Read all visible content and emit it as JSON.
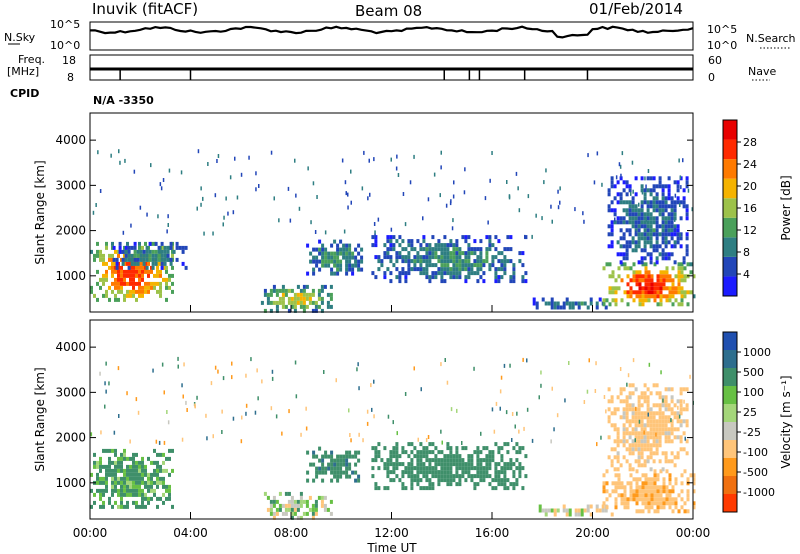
{
  "header": {
    "station": "Inuvik (fitACF)",
    "beam": "Beam 08",
    "date": "01/Feb/2014"
  },
  "status_panel": {
    "left_labels": [
      "N.Sky",
      "Freq.",
      "[MHz]",
      "CPID"
    ],
    "right_labels": [
      "N.Search",
      "Nave"
    ],
    "noise_ticks_left": [
      "10^5",
      "10^0"
    ],
    "noise_ticks_right": [
      "10^5",
      "10^0"
    ],
    "freq_ticks": [
      "18",
      "8"
    ],
    "nave_ticks": [
      "60",
      "0"
    ],
    "cpid_text": "N/A  -3350"
  },
  "colors": {
    "power": [
      "#1c1cff",
      "#2246b8",
      "#2e7e82",
      "#4aa05a",
      "#9dc24a",
      "#f5b300",
      "#ff7a00",
      "#ff2a00",
      "#e80000"
    ],
    "velocity": [
      "#2050b0",
      "#2e6e8e",
      "#3f8f6a",
      "#67c044",
      "#a4d67a",
      "#c8c8c0",
      "#ffc57a",
      "#ff9a1c",
      "#f07010",
      "#ff3a00"
    ]
  },
  "chart_data": [
    {
      "type": "heatmap",
      "quantity": "Power",
      "ylabel": "Slant Range [km]",
      "xlabel": "",
      "x_range_hours": [
        0,
        24
      ],
      "ylim": [
        200,
        4600
      ],
      "yticks": [
        1000,
        2000,
        3000,
        4000
      ],
      "colorbar": {
        "label": "Power [dB]",
        "range": [
          0,
          32
        ],
        "ticks": [
          4,
          8,
          12,
          16,
          20,
          24,
          28
        ]
      },
      "echo_regions": [
        {
          "t": [
            0.0,
            3.3
          ],
          "r": [
            450,
            1750
          ],
          "level": 26
        },
        {
          "t": [
            0.9,
            3.8
          ],
          "r": [
            1200,
            1750
          ],
          "level": 10
        },
        {
          "t": [
            6.8,
            9.6
          ],
          "r": [
            260,
            800
          ],
          "level": 18
        },
        {
          "t": [
            8.6,
            10.8
          ],
          "r": [
            1050,
            1800
          ],
          "level": 11
        },
        {
          "t": [
            11.2,
            17.4
          ],
          "r": [
            900,
            1900
          ],
          "level": 10
        },
        {
          "t": [
            17.5,
            20.8
          ],
          "r": [
            300,
            520
          ],
          "level": 9
        },
        {
          "t": [
            20.4,
            24.0
          ],
          "r": [
            350,
            1300
          ],
          "level": 27
        },
        {
          "t": [
            20.6,
            23.8
          ],
          "r": [
            1300,
            3200
          ],
          "level": 8
        }
      ]
    },
    {
      "type": "heatmap",
      "quantity": "Velocity",
      "ylabel": "Slant Range [km]",
      "xlabel": "Time UT",
      "x_range_hours": [
        0,
        24
      ],
      "xticks": [
        "00:00",
        "04:00",
        "08:00",
        "12:00",
        "16:00",
        "20:00",
        "00:00"
      ],
      "ylim": [
        200,
        4600
      ],
      "yticks": [
        1000,
        2000,
        3000,
        4000
      ],
      "colorbar": {
        "label": "Velocity [m s⁻¹]",
        "range": [
          -1250,
          1250
        ],
        "ticks": [
          "1000",
          "500",
          "100",
          "25",
          "-25",
          "-100",
          "-500",
          "-1000"
        ]
      },
      "echo_regions": [
        {
          "t": [
            0.0,
            3.3
          ],
          "r": [
            450,
            1750
          ],
          "level": 150
        },
        {
          "t": [
            6.8,
            9.6
          ],
          "r": [
            260,
            800
          ],
          "level": 0
        },
        {
          "t": [
            8.6,
            10.8
          ],
          "r": [
            1050,
            1800
          ],
          "level": 400
        },
        {
          "t": [
            11.2,
            17.4
          ],
          "r": [
            900,
            1900
          ],
          "level": 300
        },
        {
          "t": [
            17.5,
            20.8
          ],
          "r": [
            300,
            520
          ],
          "level": -60
        },
        {
          "t": [
            20.4,
            24.0
          ],
          "r": [
            350,
            1300
          ],
          "level": -400
        },
        {
          "t": [
            20.6,
            23.8
          ],
          "r": [
            1300,
            3200
          ],
          "level": -200
        }
      ]
    }
  ]
}
